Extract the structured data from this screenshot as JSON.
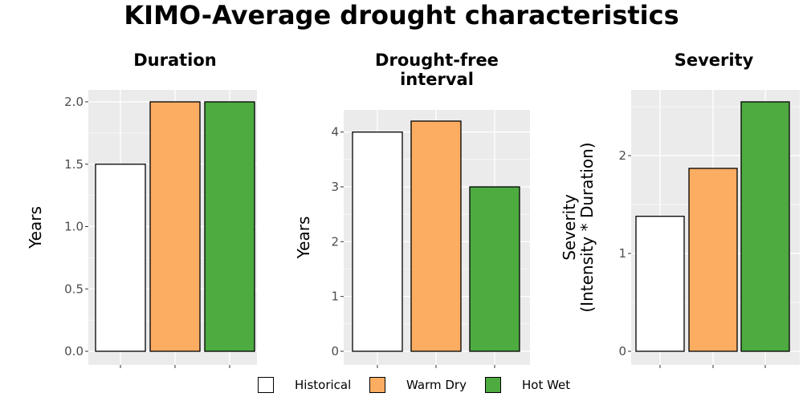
{
  "title": "KIMO-Average drought characteristics",
  "legend": {
    "items": [
      {
        "label": "Historical",
        "color": "#ffffff"
      },
      {
        "label": "Warm Dry",
        "color": "#fdad62"
      },
      {
        "label": "Hot Wet",
        "color": "#4dab40"
      }
    ]
  },
  "chart_data": [
    {
      "type": "bar",
      "title": "Duration",
      "ylabel": "Years",
      "categories": [
        "Historical",
        "Warm Dry",
        "Hot Wet"
      ],
      "values": [
        1.5,
        2.0,
        2.0
      ],
      "colors": [
        "#ffffff",
        "#fdad62",
        "#4dab40"
      ],
      "ylim": [
        0,
        2.0
      ],
      "yticks": [
        "0.0",
        "0.5",
        "1.0",
        "1.5",
        "2.0"
      ],
      "grid": true
    },
    {
      "type": "bar",
      "title": "Drought-free interval",
      "title_lines": [
        "Drought-free",
        "interval"
      ],
      "ylabel": "Years",
      "categories": [
        "Historical",
        "Warm Dry",
        "Hot Wet"
      ],
      "values": [
        4.0,
        4.2,
        3.0
      ],
      "colors": [
        "#ffffff",
        "#fdad62",
        "#4dab40"
      ],
      "ylim": [
        0,
        4.2
      ],
      "yticks": [
        "0",
        "1",
        "2",
        "3",
        "4"
      ],
      "grid": true
    },
    {
      "type": "bar",
      "title": "Severity",
      "ylabel": "Severity (Intensity * Duration)",
      "ylabel_lines": [
        "Severity",
        "(Intensity * Duration)"
      ],
      "categories": [
        "Historical",
        "Warm Dry",
        "Hot Wet"
      ],
      "values": [
        1.38,
        1.87,
        2.55
      ],
      "colors": [
        "#ffffff",
        "#fdad62",
        "#4dab40"
      ],
      "ylim": [
        0,
        2.55
      ],
      "yticks": [
        "0",
        "1",
        "2"
      ],
      "grid": true
    }
  ]
}
